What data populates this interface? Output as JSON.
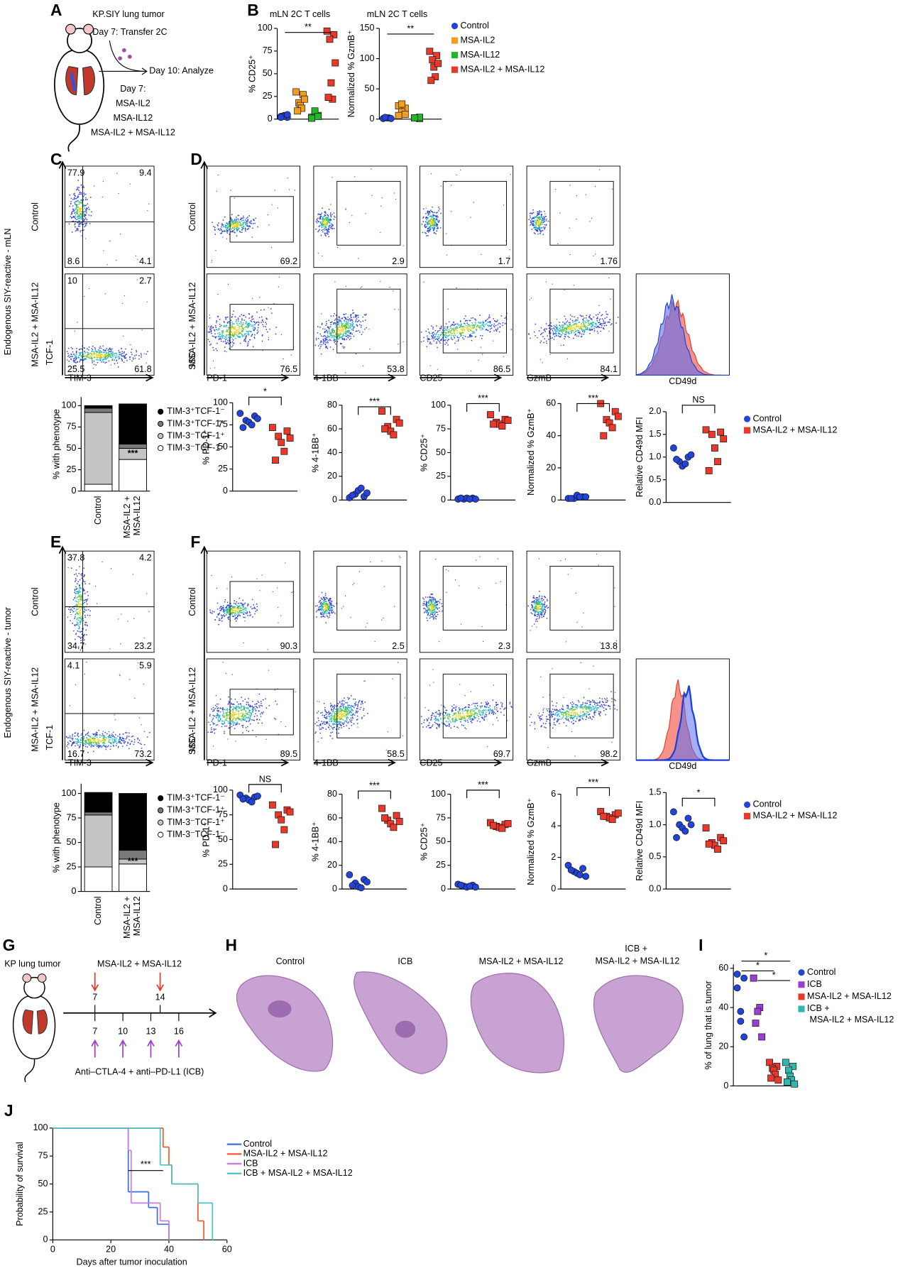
{
  "panel_labels": [
    "A",
    "B",
    "C",
    "D",
    "E",
    "F",
    "G",
    "H",
    "I",
    "J"
  ],
  "panel_a": {
    "tumor": "KP.SIY lung tumor",
    "transfer": "Day 7: Transfer 2C",
    "analyze": "Day 10: Analyze",
    "day7": "Day 7:",
    "treatments": [
      {
        "text": "MSA-IL2",
        "color": "#f39c1e"
      },
      {
        "text": "MSA-IL12",
        "color": "#25b52b"
      },
      {
        "text": "MSA-IL2 + MSA-IL12",
        "color": "#e8392b"
      }
    ]
  },
  "flow": {
    "row_labels": [
      "Endogenous SIY-reactive - mLN",
      "Endogenous SIY-reactive - tumor"
    ],
    "conditions": [
      "Control",
      "MSA-IL2 + MSA-IL12"
    ],
    "tcf1": "TCF-1",
    "tim3": "TIM-3",
    "ssc": "SSC",
    "markers": [
      "PD-1",
      "4-1BB",
      "CD25",
      "GzmB"
    ],
    "cd49d": "CD49d",
    "C": {
      "control": [
        77.9,
        9.4,
        8.6,
        4.1
      ],
      "treated": [
        10,
        2.7,
        25.5,
        61.8
      ]
    },
    "D": {
      "control": [
        69.2,
        2.9,
        1.7,
        1.76
      ],
      "treated": [
        76.5,
        53.8,
        86.5,
        84.1
      ]
    },
    "E": {
      "control": [
        37.8,
        4.2,
        34.7,
        23.2
      ],
      "treated": [
        4.1,
        5.9,
        16.7,
        73.2
      ]
    },
    "F": {
      "control": [
        90.3,
        2.5,
        2.3,
        13.8
      ],
      "treated": [
        89.5,
        58.5,
        69.7,
        98.2
      ]
    }
  },
  "panel_g": {
    "tumor": "KP lung tumor",
    "cytokines": "MSA-IL2 + MSA-IL12",
    "cytokine_days": [
      7,
      14
    ],
    "icb_days": [
      7,
      10,
      13,
      16
    ],
    "icb": "Anti–CTLA-4 + anti–PD-L1 (ICB)"
  },
  "panel_h": {
    "labels": [
      "Control",
      "ICB",
      "MSA-IL2 + MSA-IL12",
      "ICB + MSA-IL2 + MSA-IL12"
    ]
  },
  "chart_data": [
    {
      "type": "dot",
      "title": "mLN 2C T cells",
      "ylabel": "% CD25⁺",
      "ylim": [
        0,
        100
      ],
      "yticks": [
        0,
        25,
        50,
        75,
        100
      ],
      "annotations": [
        "**"
      ],
      "series": [
        {
          "color": "#2344d8",
          "marker": "circle",
          "values": [
            3,
            2,
            4,
            3,
            5,
            2
          ]
        },
        {
          "color": "#f39c1e",
          "marker": "square",
          "values": [
            30,
            27,
            18,
            15,
            12,
            9,
            22
          ]
        },
        {
          "color": "#25b52b",
          "marker": "square",
          "values": [
            2,
            4,
            6,
            9,
            3,
            1
          ]
        },
        {
          "color": "#e8392b",
          "marker": "square",
          "values": [
            97,
            93,
            88,
            40,
            22,
            24,
            62
          ]
        }
      ]
    },
    {
      "type": "dot",
      "title": "mLN 2C T cells",
      "ylabel": "Normalized % GzmB⁺",
      "ylim": [
        0,
        150
      ],
      "yticks": [
        0,
        50,
        100,
        150
      ],
      "annotations": [
        "**"
      ],
      "legend": "right",
      "series": [
        {
          "name": "Control",
          "color": "#2344d8",
          "marker": "circle",
          "values": [
            1,
            2,
            2,
            3,
            1
          ]
        },
        {
          "name": "MSA-IL2",
          "color": "#f39c1e",
          "marker": "square",
          "values": [
            22,
            18,
            25,
            12,
            8,
            6
          ]
        },
        {
          "name": "MSA-IL12",
          "color": "#25b52b",
          "marker": "square",
          "values": [
            2,
            1,
            3,
            2
          ]
        },
        {
          "name": "MSA-IL2 + MSA-IL12",
          "color": "#e8392b",
          "marker": "square",
          "values": [
            112,
            105,
            98,
            86,
            70,
            64,
            92
          ]
        }
      ]
    },
    {
      "type": "stacked",
      "ylabel": "% with phenotype",
      "categories": [
        "Control",
        "MSA-IL2 + MSA-IL12"
      ],
      "ylim": [
        0,
        110
      ],
      "yticks": [
        0,
        25,
        50,
        75,
        100
      ],
      "annotations": [
        "***",
        "***"
      ],
      "legend": "right",
      "series": [
        {
          "name": "TIM-3⁺TCF-1⁻",
          "color": "#000000",
          "values": [
            3,
            47
          ]
        },
        {
          "name": "TIM-3⁺TCF-1⁺",
          "color": "#7a7a7a",
          "values": [
            5,
            5
          ]
        },
        {
          "name": "TIM-3⁻TCF-1⁺",
          "color": "#c4c4c4",
          "values": [
            84,
            13
          ]
        },
        {
          "name": "TIM-3⁻TCF-1⁻",
          "color": "#ffffff",
          "values": [
            8,
            37
          ]
        }
      ]
    },
    {
      "type": "dot",
      "ylabel": "% PD-1⁺",
      "ylim": [
        0,
        100
      ],
      "yticks": [
        0,
        25,
        50,
        75,
        100
      ],
      "annotations": [
        "*"
      ],
      "series": [
        {
          "color": "#2344d8",
          "marker": "circle",
          "values": [
            88,
            85,
            80,
            78,
            75,
            72,
            82
          ]
        },
        {
          "color": "#e8392b",
          "marker": "square",
          "values": [
            72,
            68,
            62,
            55,
            45,
            35,
            60
          ]
        }
      ]
    },
    {
      "type": "dot",
      "ylabel": "% 4-1BB⁺",
      "ylim": [
        0,
        80
      ],
      "yticks": [
        0,
        20,
        40,
        60,
        80
      ],
      "annotations": [
        "***"
      ],
      "series": [
        {
          "color": "#2344d8",
          "marker": "circle",
          "values": [
            2,
            3,
            5,
            8,
            10,
            4,
            6
          ]
        },
        {
          "color": "#e8392b",
          "marker": "square",
          "values": [
            75,
            68,
            62,
            58,
            55,
            60,
            65
          ]
        }
      ]
    },
    {
      "type": "dot",
      "ylabel": "% CD25⁺",
      "ylim": [
        0,
        100
      ],
      "yticks": [
        0,
        25,
        50,
        75,
        100
      ],
      "annotations": [
        "***"
      ],
      "series": [
        {
          "color": "#2344d8",
          "marker": "circle",
          "values": [
            1,
            2,
            1,
            2,
            1,
            2,
            1
          ]
        },
        {
          "color": "#e8392b",
          "marker": "square",
          "values": [
            90,
            85,
            82,
            80,
            78,
            80,
            84
          ]
        }
      ]
    },
    {
      "type": "dot",
      "ylabel": "Normalized % GzmB⁺",
      "ylim": [
        0,
        60
      ],
      "yticks": [
        0,
        20,
        40,
        60
      ],
      "annotations": [
        "***"
      ],
      "series": [
        {
          "color": "#2344d8",
          "marker": "circle",
          "values": [
            1,
            2,
            1,
            3,
            2,
            1,
            2
          ]
        },
        {
          "color": "#e8392b",
          "marker": "square",
          "values": [
            60,
            55,
            50,
            48,
            45,
            40,
            52
          ]
        }
      ]
    },
    {
      "type": "dot",
      "ylabel": "Relative CD49d MFI",
      "ylim": [
        0,
        2
      ],
      "yticks": [
        {
          "value": 0,
          "label": "0.0"
        },
        0.5,
        {
          "value": 1,
          "label": "1.0"
        },
        1.5,
        {
          "value": 2,
          "label": "2.0"
        }
      ],
      "annotations": [
        "NS"
      ],
      "legend": "right",
      "series": [
        {
          "name": "Control",
          "color": "#2344d8",
          "marker": "circle",
          "values": [
            1.2,
            1.0,
            0.9,
            0.8,
            0.85,
            0.95,
            1.05
          ]
        },
        {
          "name": "MSA-IL2 + MSA-IL12",
          "color": "#e8392b",
          "marker": "square",
          "values": [
            1.6,
            1.55,
            1.5,
            1.2,
            0.9,
            0.7,
            1.4
          ]
        }
      ]
    },
    {
      "type": "stacked",
      "ylabel": "% with phenotype",
      "categories": [
        "Control",
        "MSA-IL2 + MSA-IL12"
      ],
      "ylim": [
        0,
        110
      ],
      "yticks": [
        0,
        25,
        50,
        75,
        100
      ],
      "annotations": [
        "***",
        "***"
      ],
      "legend": "right",
      "series": [
        {
          "name": "TIM-3⁺TCF-1⁻",
          "color": "#000000",
          "values": [
            20,
            58
          ]
        },
        {
          "name": "TIM-3⁺TCF-1⁺",
          "color": "#7a7a7a",
          "values": [
            3,
            9
          ]
        },
        {
          "name": "TIM-3⁻TCF-1⁺",
          "color": "#c4c4c4",
          "values": [
            53,
            5
          ]
        },
        {
          "name": "TIM-3⁻TCF-1⁻",
          "color": "#ffffff",
          "values": [
            25,
            28
          ]
        }
      ]
    },
    {
      "type": "dot",
      "ylabel": "% PD-1⁺",
      "ylim": [
        0,
        100
      ],
      "yticks": [
        0,
        25,
        50,
        75,
        100
      ],
      "annotations": [
        "NS"
      ],
      "series": [
        {
          "color": "#2344d8",
          "marker": "circle",
          "values": [
            95,
            93,
            92,
            90,
            88,
            91,
            94
          ]
        },
        {
          "color": "#e8392b",
          "marker": "square",
          "values": [
            85,
            80,
            75,
            70,
            60,
            45,
            78
          ]
        }
      ]
    },
    {
      "type": "dot",
      "ylabel": "% 4-1BB⁺",
      "ylim": [
        0,
        80
      ],
      "yticks": [
        0,
        20,
        40,
        60,
        80
      ],
      "annotations": [
        "***"
      ],
      "series": [
        {
          "color": "#2344d8",
          "marker": "circle",
          "values": [
            12,
            8,
            5,
            2,
            1,
            3,
            6
          ]
        },
        {
          "color": "#e8392b",
          "marker": "square",
          "values": [
            68,
            62,
            58,
            55,
            52,
            60,
            57
          ]
        }
      ]
    },
    {
      "type": "dot",
      "ylabel": "% CD25⁺",
      "ylim": [
        0,
        100
      ],
      "yticks": [
        0,
        25,
        50,
        75,
        100
      ],
      "annotations": [
        "***"
      ],
      "series": [
        {
          "color": "#2344d8",
          "marker": "circle",
          "values": [
            5,
            4,
            3,
            2,
            3,
            4,
            2
          ]
        },
        {
          "color": "#e8392b",
          "marker": "square",
          "values": [
            70,
            68,
            66,
            65,
            64,
            67,
            69
          ]
        }
      ]
    },
    {
      "type": "dot",
      "ylabel": "Normalized % GzmB⁺",
      "ylim": [
        0,
        6
      ],
      "yticks": [
        0,
        2,
        4,
        6
      ],
      "annotations": [
        "***"
      ],
      "series": [
        {
          "color": "#2344d8",
          "marker": "circle",
          "values": [
            1.5,
            1.3,
            1.1,
            1.0,
            0.9,
            1.2,
            0.8
          ]
        },
        {
          "color": "#e8392b",
          "marker": "square",
          "values": [
            4.9,
            4.7,
            4.6,
            4.5,
            4.4,
            4.6,
            4.8
          ]
        }
      ]
    },
    {
      "type": "dot",
      "ylabel": "Relative CD49d MFI",
      "ylim": [
        0,
        1.5
      ],
      "yticks": [
        {
          "value": 0,
          "label": "0.0"
        },
        0.5,
        {
          "value": 1,
          "label": "1.0"
        },
        1.5
      ],
      "annotations": [
        "*"
      ],
      "legend": "right",
      "series": [
        {
          "name": "Control",
          "color": "#2344d8",
          "marker": "circle",
          "values": [
            1.2,
            1.1,
            1.0,
            0.95,
            0.9,
            0.8,
            1.0
          ]
        },
        {
          "name": "MSA-IL2 + MSA-IL12",
          "color": "#e8392b",
          "marker": "square",
          "values": [
            0.95,
            0.8,
            0.72,
            0.68,
            0.62,
            0.7,
            0.75
          ]
        }
      ]
    },
    {
      "type": "dot",
      "ylabel": "% of lung that is tumor",
      "ylim": [
        0,
        62
      ],
      "yticks": [
        0,
        20,
        40,
        60
      ],
      "annotations": [
        "*",
        "*",
        "*"
      ],
      "legend": "right",
      "series": [
        {
          "name": "Control",
          "color": "#2344d8",
          "marker": "circle",
          "values": [
            57,
            55,
            38,
            33,
            25,
            50
          ]
        },
        {
          "name": "ICB",
          "color": "#9b3fd0",
          "marker": "square",
          "values": [
            55,
            40,
            38,
            32,
            25
          ]
        },
        {
          "name": "MSA-IL2 + MSA-IL12",
          "color": "#e8392b",
          "marker": "square",
          "values": [
            12,
            10,
            9,
            8,
            6,
            4,
            3
          ]
        },
        {
          "name": "ICB + MSA-IL2 + MSA-IL12",
          "color": "#2fb8b0",
          "marker": "square",
          "values": [
            12,
            10,
            8,
            5,
            3,
            2,
            1
          ]
        }
      ]
    },
    {
      "type": "step",
      "xlabel": "Days after tumor inoculation",
      "ylabel": "Probability of survival",
      "xlim": [
        0,
        60
      ],
      "xticks": [
        0,
        20,
        40,
        60
      ],
      "ylim": [
        0,
        100
      ],
      "yticks": [
        0,
        25,
        50,
        75,
        100
      ],
      "annotations": [
        "***"
      ],
      "legend": "right",
      "series": [
        {
          "name": "Control",
          "color": "#3a6fd8",
          "x": [
            0,
            26,
            33,
            36,
            40
          ],
          "values": [
            100,
            43,
            29,
            14,
            0
          ]
        },
        {
          "name": "MSA-IL2 + MSA-IL12",
          "color": "#f05a28",
          "x": [
            0,
            38,
            40,
            41,
            50,
            52
          ],
          "values": [
            100,
            83,
            67,
            50,
            17,
            0
          ]
        },
        {
          "name": "ICB",
          "color": "#c77ddd",
          "x": [
            0,
            26,
            27,
            37,
            40
          ],
          "values": [
            100,
            80,
            33,
            17,
            0
          ]
        },
        {
          "name": "ICB + MSA-IL2 + MSA-IL12",
          "color": "#4fc1c1",
          "x": [
            0,
            37,
            41,
            50,
            55
          ],
          "values": [
            100,
            67,
            50,
            33,
            0
          ]
        }
      ]
    }
  ]
}
